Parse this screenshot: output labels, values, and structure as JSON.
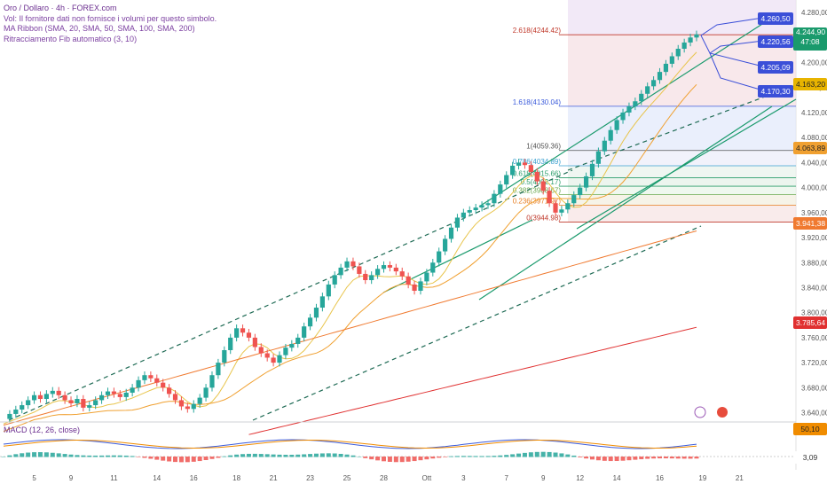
{
  "header": {
    "title": "Oro / Dollaro · 4h · FOREX.com",
    "volume_note": "Vol: Il fornitore dati non fornisce i volumi per questo simbolo.",
    "ma_ribbon": "MA Ribbon (SMA, 20, SMA, 50, SMA, 100, SMA, 200)",
    "fib": "Ritracciamento Fib automatico (3, 10)"
  },
  "macd_legend": "MACD (12, 26, close)",
  "price_labels": {
    "target1": "4.260,50",
    "current": "4.244,90",
    "countdown": "47:08",
    "target2": "4.220,56",
    "target3": "4.205,09",
    "target4": "4.170,30",
    "ma20": "4.163,20",
    "ma50": "4.063,89",
    "ma100": "3.941,38",
    "ma200": "3.785,64",
    "macd_val": "50,10",
    "macd_hist": "3,09"
  },
  "colors": {
    "up": "#26a69a",
    "down": "#ef5350",
    "channel": "#1a9a6c",
    "ma20": "#e8c44a",
    "ma50": "#f0a030",
    "ma100": "#f07a30",
    "ma200": "#e03030",
    "macd": "#3b5bdb",
    "signal": "#f08c00",
    "label_blue": "#3b4fd8"
  },
  "chart_data": {
    "type": "line",
    "title": "Oro / Dollaro · 4h · FOREX.com",
    "y_axis_ticks": [
      "4.280,00",
      "4.240,00",
      "4.200,00",
      "4.160,00",
      "4.120,00",
      "4.080,00",
      "4.040,00",
      "4.000,00",
      "3.960,00",
      "3.920,00",
      "3.880,00",
      "3.840,00",
      "3.800,00",
      "3.760,00",
      "3.720,00",
      "3.680,00",
      "3.640,00"
    ],
    "y_axis_values": [
      4280,
      4240,
      4200,
      4160,
      4120,
      4080,
      4040,
      4000,
      3960,
      3920,
      3880,
      3840,
      3800,
      3760,
      3720,
      3680,
      3640
    ],
    "ylim": [
      3628,
      4300
    ],
    "x_axis_ticks": [
      "5",
      "9",
      "11",
      "14",
      "16",
      "18",
      "21",
      "23",
      "25",
      "28",
      "Ott",
      "3",
      "7",
      "9",
      "12",
      "14",
      "16",
      "19",
      "21"
    ],
    "x_axis_index": [
      5,
      11,
      18,
      25,
      31,
      38,
      44,
      50,
      56,
      62,
      69,
      75,
      82,
      88,
      94,
      100,
      107,
      114,
      120
    ],
    "x_range": [
      0,
      124
    ],
    "series": [
      {
        "values": [
          3630,
          3638,
          3645,
          3652,
          3660,
          3668,
          3662,
          3670,
          3675,
          3668,
          3660,
          3655,
          3662,
          3648,
          3652,
          3660,
          3668,
          3674,
          3670,
          3665,
          3672,
          3680,
          3692,
          3700,
          3695,
          3688,
          3680,
          3670,
          3660,
          3650,
          3646,
          3654,
          3664,
          3680,
          3700,
          3720,
          3740,
          3760,
          3775,
          3768,
          3760,
          3745,
          3735,
          3728,
          3720,
          3732,
          3744,
          3750,
          3760,
          3778,
          3792,
          3808,
          3826,
          3845,
          3860,
          3872,
          3882,
          3874,
          3862,
          3852,
          3860,
          3870,
          3876,
          3872,
          3866,
          3858,
          3845,
          3835,
          3850,
          3864,
          3880,
          3898,
          3918,
          3936,
          3952,
          3960,
          3964,
          3968,
          3972,
          3975,
          3990,
          4005,
          4020,
          4035,
          4040,
          4036,
          4025,
          4010,
          3995,
          3975,
          3960,
          3965,
          3975,
          3988,
          4000,
          4018,
          4038,
          4058,
          4075,
          4092,
          4108,
          4120,
          4130,
          4138,
          4150,
          4162,
          4172,
          4185,
          4198,
          4210,
          4222,
          4232,
          4240,
          4245
        ]
      }
    ],
    "fibonacci_levels": [
      {
        "label": "2.618(4244.42)",
        "value": 4244.42
      },
      {
        "label": "1.618(4130.04)",
        "value": 4130.04
      },
      {
        "label": "1(4059.36)",
        "value": 4059.36
      },
      {
        "label": "0.786(4034.89)",
        "value": 4034.89
      },
      {
        "label": "0.618(4015.66)",
        "value": 4015.66
      },
      {
        "label": "0.5(4002.17)",
        "value": 4002.17
      },
      {
        "label": "0.382(3988.67)",
        "value": 3988.67
      },
      {
        "label": "0.236(3971.97)",
        "value": 3971.97
      },
      {
        "label": "0(3944.98)",
        "value": 3944.98
      }
    ],
    "macd": {
      "title": "MACD (12, 26, close)",
      "macd_value": 50.1,
      "histogram_value": 3.09
    }
  }
}
